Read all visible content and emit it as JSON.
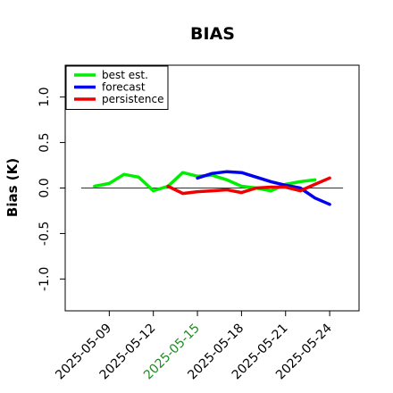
{
  "chart_data": {
    "type": "line",
    "title": "BIAS",
    "xlabel": "",
    "ylabel": "Bias (K)",
    "x_dates": [
      "2025-05-08",
      "2025-05-09",
      "2025-05-10",
      "2025-05-11",
      "2025-05-12",
      "2025-05-13",
      "2025-05-14",
      "2025-05-15",
      "2025-05-16",
      "2025-05-17",
      "2025-05-18",
      "2025-05-19",
      "2025-05-20",
      "2025-05-21",
      "2025-05-22",
      "2025-05-23",
      "2025-05-24"
    ],
    "xlim": [
      "2025-05-06",
      "2025-05-26"
    ],
    "ylim": [
      -1.35,
      1.35
    ],
    "x_ticks": [
      "2025-05-09",
      "2025-05-12",
      "2025-05-15",
      "2025-05-18",
      "2025-05-21",
      "2025-05-24"
    ],
    "x_tick_colors": [
      "#000000",
      "#000000",
      "#228b22",
      "#000000",
      "#000000",
      "#000000"
    ],
    "y_ticks": [
      -1.0,
      -0.5,
      0.0,
      0.5,
      1.0
    ],
    "y_tick_labels": [
      "-1.0",
      "-0.5",
      "0.0",
      "0.5",
      "1.0"
    ],
    "zero_line": true,
    "grid": false,
    "legend_position": "top-left",
    "series": [
      {
        "name": "best est.",
        "color": "#00ee00",
        "values": [
          0.02,
          0.05,
          0.15,
          0.12,
          -0.03,
          0.02,
          0.17,
          0.13,
          0.14,
          0.09,
          0.02,
          0.0,
          -0.03,
          0.04,
          0.07,
          0.09,
          null
        ]
      },
      {
        "name": "forecast",
        "color": "#0000ee",
        "values": [
          null,
          null,
          null,
          null,
          null,
          null,
          null,
          0.11,
          0.16,
          0.18,
          0.17,
          0.12,
          0.07,
          0.03,
          0.0,
          -0.11,
          -0.18
        ]
      },
      {
        "name": "persistence",
        "color": "#ee0000",
        "values": [
          null,
          null,
          null,
          null,
          null,
          0.02,
          -0.06,
          -0.04,
          -0.03,
          -0.02,
          -0.05,
          0.0,
          0.01,
          0.01,
          -0.03,
          0.04,
          0.11
        ]
      }
    ]
  }
}
